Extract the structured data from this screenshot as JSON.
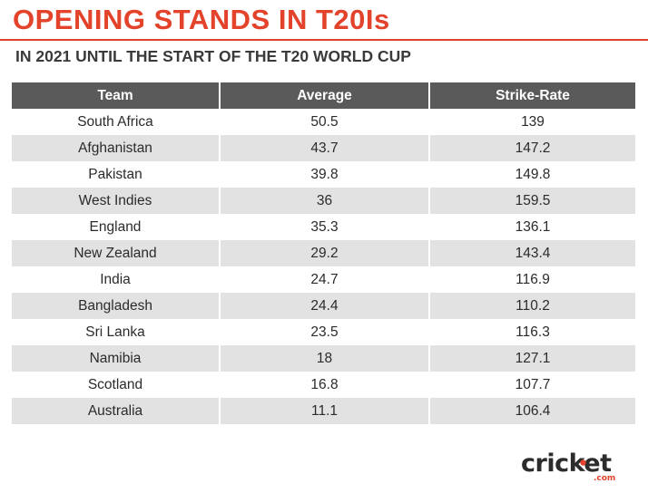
{
  "header": {
    "title": "OPENING STANDS IN T20Is",
    "subtitle": "IN 2021 UNTIL THE START OF THE T20 WORLD CUP"
  },
  "colors": {
    "accent": "#e2432a",
    "header_bg": "#5a5a5a",
    "row_alt": "#e2e2e2"
  },
  "chart_data": {
    "type": "table",
    "columns": [
      "Team",
      "Average",
      "Strike-Rate"
    ],
    "rows": [
      [
        "South Africa",
        "50.5",
        "139"
      ],
      [
        "Afghanistan",
        "43.7",
        "147.2"
      ],
      [
        "Pakistan",
        "39.8",
        "149.8"
      ],
      [
        "West Indies",
        "36",
        "159.5"
      ],
      [
        "England",
        "35.3",
        "136.1"
      ],
      [
        "New Zealand",
        "29.2",
        "143.4"
      ],
      [
        "India",
        "24.7",
        "116.9"
      ],
      [
        "Bangladesh",
        "24.4",
        "110.2"
      ],
      [
        "Sri Lanka",
        "23.5",
        "116.3"
      ],
      [
        "Namibia",
        "18",
        "127.1"
      ],
      [
        "Scotland",
        "16.8",
        "107.7"
      ],
      [
        "Australia",
        "11.1",
        "106.4"
      ]
    ]
  },
  "logo": {
    "text": "cricket",
    "suffix": ".com"
  }
}
